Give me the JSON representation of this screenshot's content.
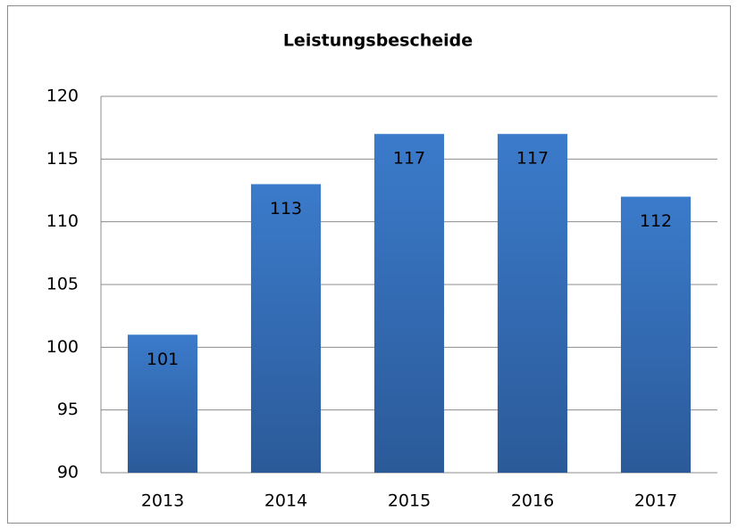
{
  "chart_data": {
    "type": "bar",
    "title": "Leistungsbescheide",
    "categories": [
      "2013",
      "2014",
      "2015",
      "2016",
      "2017"
    ],
    "values": [
      101,
      113,
      117,
      117,
      112
    ],
    "color": "#3b7bcb",
    "ylim": [
      90,
      120
    ],
    "yticks": [
      90,
      95,
      100,
      105,
      110,
      115,
      120
    ],
    "grid": true
  }
}
